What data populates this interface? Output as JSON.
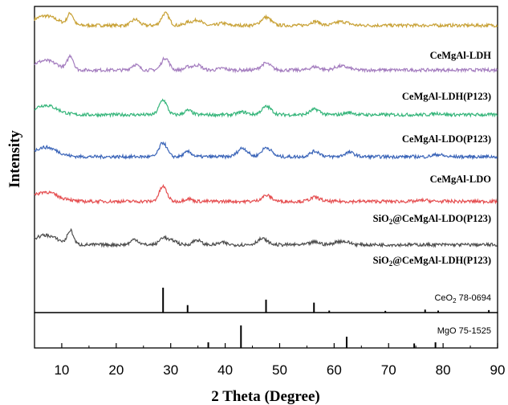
{
  "chart_data": {
    "type": "line",
    "xlabel": "2 Theta (Degree)",
    "ylabel": "Intensity",
    "xlim": [
      5,
      90
    ],
    "x_ticks": [
      10,
      20,
      30,
      40,
      50,
      60,
      70,
      80,
      90
    ],
    "y_ticks_shown": false,
    "grid": false,
    "panels": [
      "xrd-patterns",
      "CeO2 reference",
      "MgO reference"
    ],
    "series": [
      {
        "name": "CeMgAl-LDH",
        "color": "#c8a135",
        "baseline": 0.93,
        "peaks": [
          [
            11.6,
            0.42
          ],
          [
            23.5,
            0.22
          ],
          [
            29.0,
            0.45
          ],
          [
            33.3,
            0.12
          ],
          [
            35.0,
            0.2
          ],
          [
            39.5,
            0.08
          ],
          [
            47.5,
            0.3
          ],
          [
            56.5,
            0.14
          ],
          [
            60.8,
            0.1
          ],
          [
            62.2,
            0.08
          ]
        ]
      },
      {
        "name": "CeMgAl-LDH(P123)",
        "color": "#a47dbf",
        "baseline": 0.765,
        "peaks": [
          [
            11.6,
            0.5
          ],
          [
            23.5,
            0.2
          ],
          [
            29.0,
            0.45
          ],
          [
            33.3,
            0.12
          ],
          [
            35.0,
            0.18
          ],
          [
            39.5,
            0.07
          ],
          [
            47.5,
            0.25
          ],
          [
            56.5,
            0.12
          ],
          [
            60.8,
            0.11
          ],
          [
            62.2,
            0.08
          ]
        ]
      },
      {
        "name": "CeMgAl-LDO(P123)",
        "color": "#35b57a",
        "baseline": 0.6,
        "peaks": [
          [
            28.6,
            0.55
          ],
          [
            33.2,
            0.16
          ],
          [
            43.2,
            0.1
          ],
          [
            47.6,
            0.3
          ],
          [
            56.5,
            0.2
          ],
          [
            62.8,
            0.08
          ],
          [
            79.0,
            0.05
          ]
        ]
      },
      {
        "name": "CeMgAl-LDO",
        "color": "#3a64b8",
        "baseline": 0.445,
        "peaks": [
          [
            28.6,
            0.52
          ],
          [
            33.2,
            0.18
          ],
          [
            43.2,
            0.32
          ],
          [
            47.6,
            0.34
          ],
          [
            56.5,
            0.2
          ],
          [
            62.8,
            0.16
          ],
          [
            79.0,
            0.08
          ]
        ]
      },
      {
        "name": "SiO2@CeMgAl-LDO(P123)",
        "color": "#e54e50",
        "baseline": 0.28,
        "peaks": [
          [
            11.2,
            0.05
          ],
          [
            28.6,
            0.55
          ],
          [
            33.2,
            0.1
          ],
          [
            47.6,
            0.22
          ],
          [
            56.5,
            0.15
          ],
          [
            76.5,
            0.04
          ]
        ]
      },
      {
        "name": "SiO2@CeMgAl-LDH(P123)",
        "color": "#4d4d4d",
        "baseline": 0.12,
        "peaks": [
          [
            11.6,
            0.5
          ],
          [
            23.4,
            0.2
          ],
          [
            28.7,
            0.28
          ],
          [
            30.5,
            0.15
          ],
          [
            34.8,
            0.18
          ],
          [
            39.5,
            0.08
          ],
          [
            46.8,
            0.22
          ],
          [
            56.5,
            0.1
          ],
          [
            60.8,
            0.1
          ],
          [
            62.3,
            0.08
          ]
        ]
      }
    ],
    "reference_patterns": [
      {
        "name": "CeO2 78-0694",
        "lines": [
          [
            28.6,
            1.0
          ],
          [
            33.1,
            0.3
          ],
          [
            47.5,
            0.52
          ],
          [
            56.3,
            0.4
          ],
          [
            59.1,
            0.08
          ],
          [
            69.4,
            0.07
          ],
          [
            76.7,
            0.12
          ],
          [
            79.1,
            0.08
          ],
          [
            88.4,
            0.1
          ]
        ]
      },
      {
        "name": "MgO 75-1525",
        "lines": [
          [
            36.9,
            0.25
          ],
          [
            42.9,
            1.0
          ],
          [
            62.3,
            0.5
          ],
          [
            74.7,
            0.2
          ],
          [
            78.6,
            0.25
          ]
        ]
      }
    ]
  },
  "labels": {
    "s0": "CeMgAl-LDH",
    "s1": "CeMgAl-LDH(P123)",
    "s2": "CeMgAl-LDO(P123)",
    "s3": "CeMgAl-LDO",
    "s4_pre": "SiO",
    "s4_sub": "2",
    "s4_post": "@CeMgAl-LDO(P123)",
    "s5_pre": "SiO",
    "s5_sub": "2",
    "s5_post": "@CeMgAl-LDH(P123)",
    "ref1_pre": "CeO",
    "ref1_sub": "2",
    "ref1_post": " 78-0694",
    "ref2": "MgO 75-1525"
  }
}
